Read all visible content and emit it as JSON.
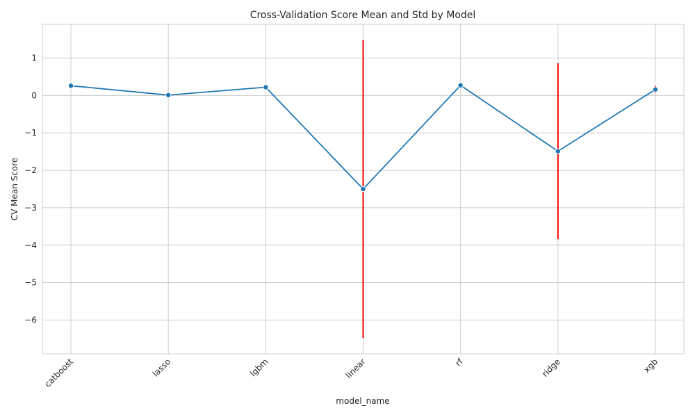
{
  "chart_data": {
    "type": "line",
    "title": "Cross-Validation Score Mean and Std by Model",
    "xlabel": "model_name",
    "ylabel": "CV Mean Score",
    "categories": [
      "catboost",
      "lasso",
      "lgbm",
      "linear",
      "rf",
      "ridge",
      "xgb"
    ],
    "series": [
      {
        "values": [
          0.26,
          0.01,
          0.22,
          -2.5,
          0.27,
          -1.49,
          0.16
        ],
        "std": [
          0.02,
          0.01,
          0.04,
          3.98,
          0.02,
          2.35,
          0.09
        ]
      }
    ],
    "yticks": [
      1,
      0,
      -1,
      -2,
      -3,
      -4,
      -5,
      -6
    ],
    "ytick_labels": [
      "1",
      "0",
      "−1",
      "−2",
      "−3",
      "−4",
      "−5",
      "−6"
    ],
    "ylim": [
      -6.9,
      1.9
    ],
    "grid": true,
    "colors": {
      "line": "#1f77b4",
      "marker": "#1f77b4",
      "errorbar": "#ff0000",
      "grid": "#cccccc"
    }
  }
}
